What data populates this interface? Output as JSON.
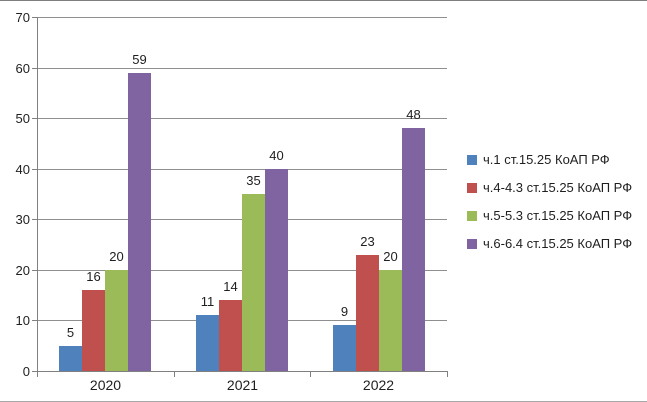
{
  "frame": {
    "top_rule_color": "#7f7f7f",
    "bottom_rule_color": "#a6a6a6",
    "background": "#ffffff"
  },
  "chart_data": {
    "type": "bar",
    "title": "",
    "xlabel": "",
    "ylabel": "",
    "categories": [
      "2020",
      "2021",
      "2022"
    ],
    "series": [
      {
        "name": "ч.1 ст.15.25 КоАП РФ",
        "color": "#4F81BD",
        "values": [
          5,
          11,
          9
        ]
      },
      {
        "name": "ч.4-4.3 ст.15.25 КоАП РФ",
        "color": "#C0504D",
        "values": [
          16,
          14,
          23
        ]
      },
      {
        "name": "ч.5-5.3 ст.15.25 КоАП РФ",
        "color": "#9BBB59",
        "values": [
          20,
          35,
          20
        ]
      },
      {
        "name": "ч.6-6.4 ст.15.25 КоАП РФ",
        "color": "#8064A2",
        "values": [
          59,
          40,
          48
        ]
      }
    ],
    "yticks": [
      0,
      10,
      20,
      30,
      40,
      50,
      60,
      70
    ],
    "ylim": [
      0,
      70
    ],
    "grid": "horizontal",
    "grid_color": "#8f8f8f",
    "axis_color": "#808080",
    "text_color": "#1f1f1f",
    "legend_position": "right",
    "data_labels": true
  }
}
